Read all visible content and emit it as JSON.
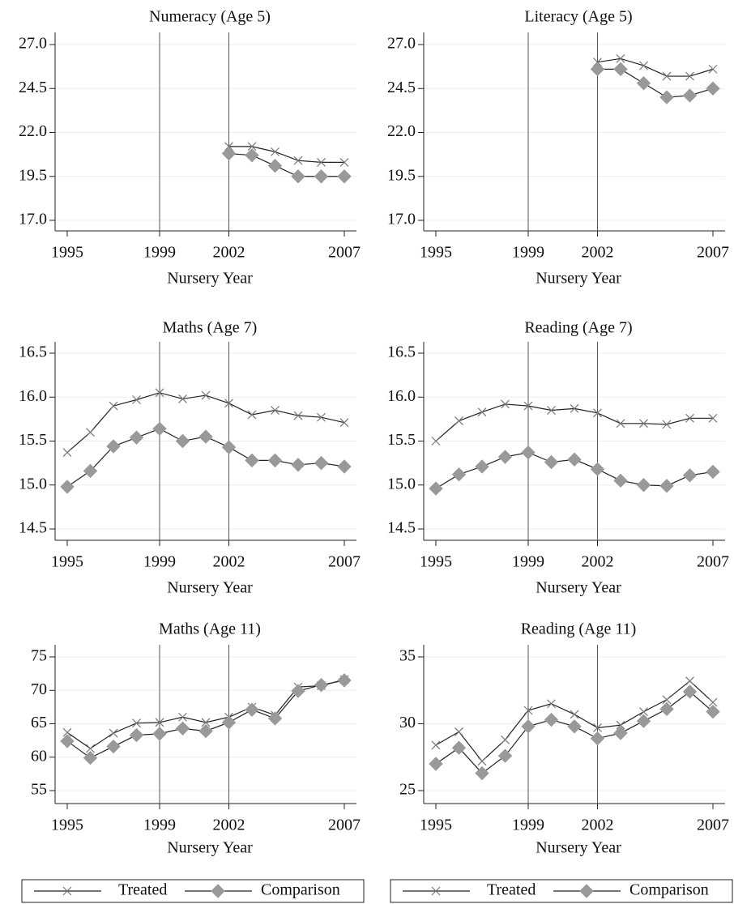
{
  "chart_data": [
    {
      "type": "line",
      "title": "Numeracy (Age 5)",
      "x_label": "Nursery Year",
      "x": [
        2002,
        2003,
        2004,
        2005,
        2006,
        2007
      ],
      "series": [
        {
          "name": "Treated",
          "color": "#222222",
          "marker": "x",
          "marker_color": "#777777",
          "values": [
            21.2,
            21.2,
            20.9,
            20.4,
            20.3,
            20.3
          ]
        },
        {
          "name": "Comparison",
          "color": "#222222",
          "marker": "diamond",
          "marker_color": "#999999",
          "values": [
            20.8,
            20.7,
            20.1,
            19.5,
            19.5,
            19.5
          ]
        }
      ],
      "xlim": [
        1995,
        2007
      ],
      "xticks": [
        1995,
        1999,
        2002,
        2007
      ],
      "vlines": [
        1999,
        2002
      ],
      "ylim": [
        17,
        27
      ],
      "yticks": [
        {
          "value": 17,
          "label": "17.0"
        },
        19.5,
        {
          "value": 22,
          "label": "22.0"
        },
        24.5,
        {
          "value": 27,
          "label": "27.0"
        }
      ],
      "grid": true
    },
    {
      "type": "line",
      "title": "Literacy (Age 5)",
      "x_label": "Nursery Year",
      "x": [
        2002,
        2003,
        2004,
        2005,
        2006,
        2007
      ],
      "series": [
        {
          "name": "Treated",
          "color": "#222222",
          "marker": "x",
          "marker_color": "#777777",
          "values": [
            26.0,
            26.2,
            25.8,
            25.2,
            25.2,
            25.6
          ]
        },
        {
          "name": "Comparison",
          "color": "#222222",
          "marker": "diamond",
          "marker_color": "#999999",
          "values": [
            25.6,
            25.6,
            24.8,
            24.0,
            24.1,
            24.5
          ]
        }
      ],
      "xlim": [
        1995,
        2007
      ],
      "xticks": [
        1995,
        1999,
        2002,
        2007
      ],
      "vlines": [
        1999,
        2002
      ],
      "ylim": [
        17,
        27
      ],
      "yticks": [
        {
          "value": 17,
          "label": "17.0"
        },
        19.5,
        {
          "value": 22,
          "label": "22.0"
        },
        24.5,
        {
          "value": 27,
          "label": "27.0"
        }
      ],
      "grid": true
    },
    {
      "type": "line",
      "title": "Maths (Age 7)",
      "x_label": "Nursery Year",
      "x": [
        1995,
        1996,
        1997,
        1998,
        1999,
        2000,
        2001,
        2002,
        2003,
        2004,
        2005,
        2006,
        2007
      ],
      "series": [
        {
          "name": "Treated",
          "color": "#222222",
          "marker": "x",
          "marker_color": "#777777",
          "values": [
            15.37,
            15.6,
            15.9,
            15.97,
            16.05,
            15.98,
            16.02,
            15.93,
            15.8,
            15.85,
            15.79,
            15.77,
            15.71
          ]
        },
        {
          "name": "Comparison",
          "color": "#222222",
          "marker": "diamond",
          "marker_color": "#999999",
          "values": [
            14.98,
            15.16,
            15.44,
            15.54,
            15.64,
            15.5,
            15.55,
            15.43,
            15.28,
            15.28,
            15.23,
            15.25,
            15.21
          ]
        }
      ],
      "xlim": [
        1995,
        2007
      ],
      "xticks": [
        1995,
        1999,
        2002,
        2007
      ],
      "vlines": [
        1999,
        2002
      ],
      "ylim": [
        14.5,
        16.5
      ],
      "yticks": [
        14.5,
        {
          "value": 15,
          "label": "15.0"
        },
        15.5,
        {
          "value": 16,
          "label": "16.0"
        },
        16.5
      ],
      "grid": true
    },
    {
      "type": "line",
      "title": "Reading (Age 7)",
      "x_label": "Nursery Year",
      "x": [
        1995,
        1996,
        1997,
        1998,
        1999,
        2000,
        2001,
        2002,
        2003,
        2004,
        2005,
        2006,
        2007
      ],
      "series": [
        {
          "name": "Treated",
          "color": "#222222",
          "marker": "x",
          "marker_color": "#777777",
          "values": [
            15.5,
            15.73,
            15.83,
            15.92,
            15.9,
            15.85,
            15.87,
            15.82,
            15.7,
            15.7,
            15.69,
            15.76,
            15.76
          ]
        },
        {
          "name": "Comparison",
          "color": "#222222",
          "marker": "diamond",
          "marker_color": "#999999",
          "values": [
            14.96,
            15.12,
            15.21,
            15.32,
            15.37,
            15.26,
            15.29,
            15.18,
            15.05,
            15.0,
            14.99,
            15.11,
            15.15
          ]
        }
      ],
      "xlim": [
        1995,
        2007
      ],
      "xticks": [
        1995,
        1999,
        2002,
        2007
      ],
      "vlines": [
        1999,
        2002
      ],
      "ylim": [
        14.5,
        16.5
      ],
      "yticks": [
        14.5,
        {
          "value": 15,
          "label": "15.0"
        },
        15.5,
        {
          "value": 16,
          "label": "16.0"
        },
        16.5
      ],
      "grid": true
    },
    {
      "type": "line",
      "title": "Maths (Age 11)",
      "x_label": "Nursery Year",
      "x": [
        1995,
        1996,
        1997,
        1998,
        1999,
        2000,
        2001,
        2002,
        2003,
        2004,
        2005,
        2006,
        2007
      ],
      "series": [
        {
          "name": "Treated",
          "color": "#222222",
          "marker": "x",
          "marker_color": "#777777",
          "values": [
            63.7,
            61.3,
            63.6,
            65.1,
            65.2,
            66.0,
            65.2,
            66.0,
            67.5,
            66.3,
            70.5,
            70.7,
            71.6
          ]
        },
        {
          "name": "Comparison",
          "color": "#222222",
          "marker": "diamond",
          "marker_color": "#999999",
          "values": [
            62.4,
            59.9,
            61.6,
            63.3,
            63.5,
            64.3,
            63.9,
            65.2,
            67.1,
            65.8,
            69.9,
            70.8,
            71.5
          ]
        }
      ],
      "xlim": [
        1995,
        2007
      ],
      "xticks": [
        1995,
        1999,
        2002,
        2007
      ],
      "vlines": [
        1999,
        2002
      ],
      "ylim": [
        55,
        75
      ],
      "yticks": [
        55,
        60,
        65,
        70,
        75
      ],
      "grid": true
    },
    {
      "type": "line",
      "title": "Reading (Age 11)",
      "x_label": "Nursery Year",
      "x": [
        1995,
        1996,
        1997,
        1998,
        1999,
        2000,
        2001,
        2002,
        2003,
        2004,
        2005,
        2006,
        2007
      ],
      "series": [
        {
          "name": "Treated",
          "color": "#222222",
          "marker": "x",
          "marker_color": "#777777",
          "values": [
            28.4,
            29.4,
            27.2,
            28.8,
            31.0,
            31.5,
            30.7,
            29.7,
            29.9,
            30.9,
            31.8,
            33.2,
            31.6
          ]
        },
        {
          "name": "Comparison",
          "color": "#222222",
          "marker": "diamond",
          "marker_color": "#999999",
          "values": [
            27.0,
            28.2,
            26.3,
            27.6,
            29.8,
            30.3,
            29.8,
            28.9,
            29.3,
            30.2,
            31.1,
            32.4,
            30.9
          ]
        }
      ],
      "xlim": [
        1995,
        2007
      ],
      "xticks": [
        1995,
        1999,
        2002,
        2007
      ],
      "vlines": [
        1999,
        2002
      ],
      "ylim": [
        25,
        35
      ],
      "yticks": [
        25,
        30,
        35
      ],
      "grid": true
    }
  ]
}
